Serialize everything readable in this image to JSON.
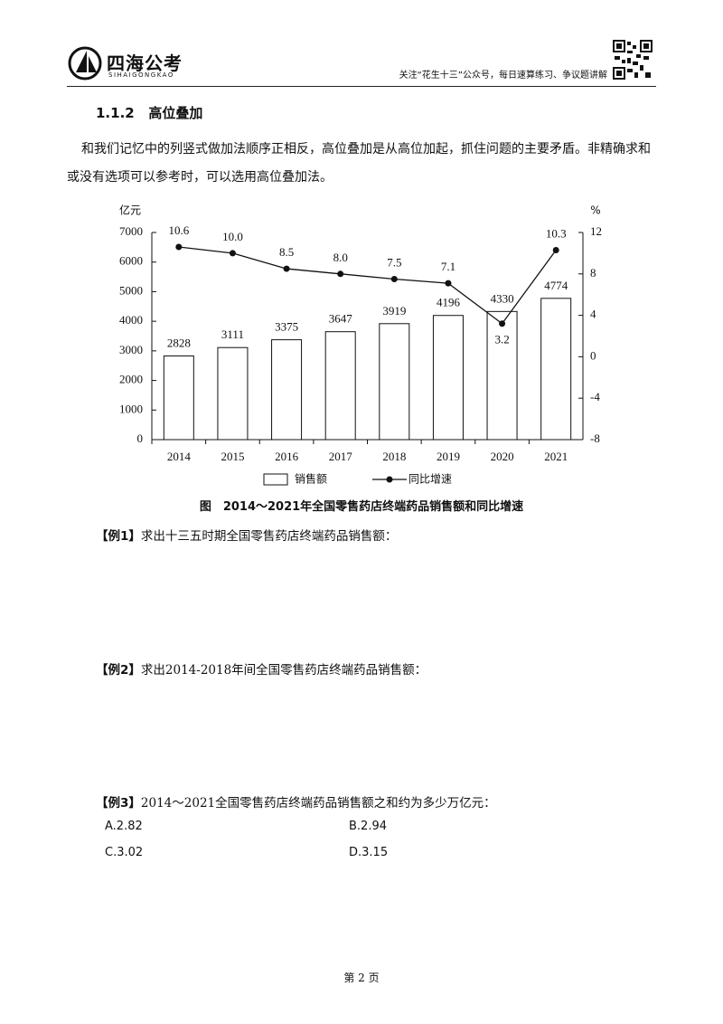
{
  "header": {
    "logo_text": "四海公考",
    "logo_sub": "SIHAIGONGKAO",
    "note": "关注“花生十三”公众号，每日速算练习、争议题讲解"
  },
  "section": {
    "number": "1.1.2",
    "title": "高位叠加"
  },
  "paragraph": "和我们记忆中的列竖式做加法顺序正相反，高位叠加是从高位加起，抓住问题的主要矛盾。非精确求和或没有选项可以参考时，可以选用高位叠加法。",
  "chart_data": {
    "type": "bar",
    "title": "图　2014～2021年全国零售药店终端药品销售额和同比增速",
    "y_label": "亿元",
    "y2_label": "%",
    "categories": [
      "2014",
      "2015",
      "2016",
      "2017",
      "2018",
      "2019",
      "2020",
      "2021"
    ],
    "series": [
      {
        "name": "销售额",
        "type": "bar",
        "color": "#ffffff",
        "values": [
          2828,
          3111,
          3375,
          3647,
          3919,
          4196,
          4330,
          4774
        ]
      },
      {
        "name": "同比增速",
        "type": "line",
        "axis": "y2",
        "color": "#111111",
        "values": [
          10.6,
          10.0,
          8.5,
          8.0,
          7.5,
          7.1,
          3.2,
          10.3
        ],
        "value_labels": [
          "10.6",
          "10.0",
          "8.5",
          "8.0",
          "7.5",
          "7.1",
          "3.2",
          "10.3"
        ]
      }
    ],
    "ylim": [
      0,
      7000
    ],
    "yticks": [
      0,
      1000,
      2000,
      3000,
      4000,
      5000,
      6000,
      7000
    ],
    "y2lim": [
      -8,
      12
    ],
    "y2ticks": [
      -8,
      -4,
      0,
      4,
      8,
      12
    ],
    "legend": "bottom"
  },
  "examples": [
    {
      "label": "【例1】",
      "text": "求出十三五时期全国零售药店终端药品销售额："
    },
    {
      "label": "【例2】",
      "text": "求出2014-2018年间全国零售药店终端药品销售额："
    },
    {
      "label": "【例3】",
      "text": "2014～2021全国零售药店终端药品销售额之和约为多少万亿元：",
      "options": [
        "A.2.82",
        "B.2.94",
        "C.3.02",
        "D.3.15"
      ]
    }
  ],
  "footer": "第 2 页"
}
